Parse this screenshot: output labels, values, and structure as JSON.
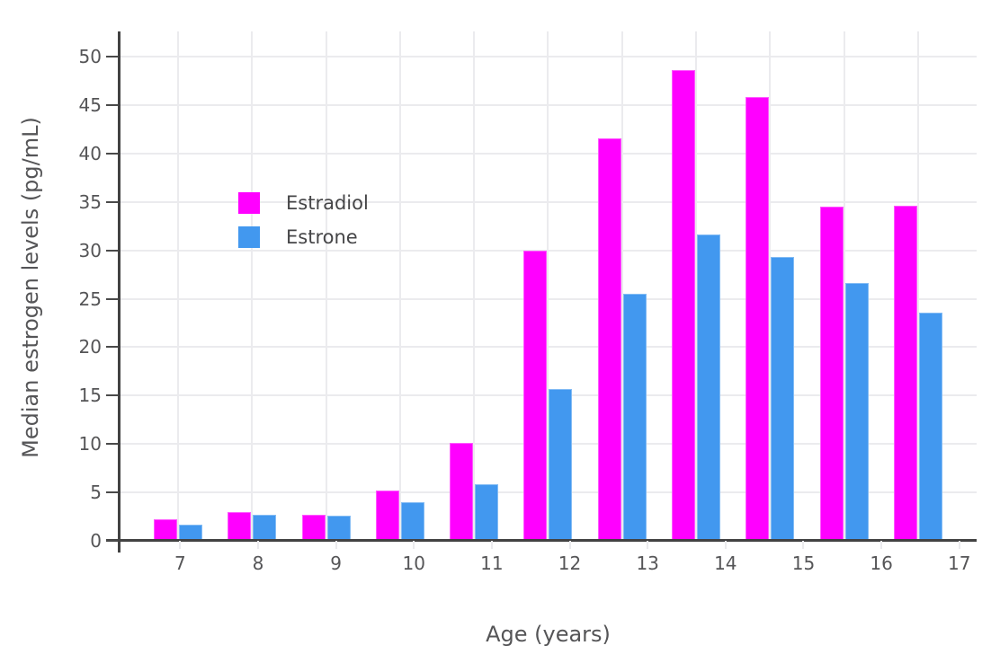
{
  "chart_data": {
    "type": "bar",
    "title": "",
    "xlabel": "Age (years)",
    "ylabel": "Median estrogen levels (pg/mL)",
    "categories": [
      7,
      8,
      9,
      10,
      11,
      12,
      13,
      14,
      15,
      16,
      17
    ],
    "series": [
      {
        "name": "Estradiol",
        "color": "#ff00ff",
        "values": [
          2.2,
          3.0,
          2.7,
          5.2,
          10.1,
          30.0,
          41.6,
          48.6,
          45.8,
          34.5,
          34.6
        ]
      },
      {
        "name": "Estrone",
        "color": "#4298ef",
        "values": [
          1.7,
          2.7,
          2.6,
          4.0,
          5.8,
          15.7,
          25.5,
          31.6,
          29.3,
          26.6,
          23.6
        ]
      }
    ],
    "yticks": [
      0,
      5,
      10,
      15,
      20,
      25,
      30,
      35,
      40,
      45,
      50
    ],
    "ylim": [
      0,
      52.6
    ],
    "grid": true,
    "legend_position": "inside-top-left"
  },
  "colors": {
    "estradiol": "#ff00ff",
    "estrone": "#4298ef",
    "axis": "#424242",
    "gridline": "#ebebee",
    "tick_text": "#555557",
    "background": "#ffffff"
  }
}
